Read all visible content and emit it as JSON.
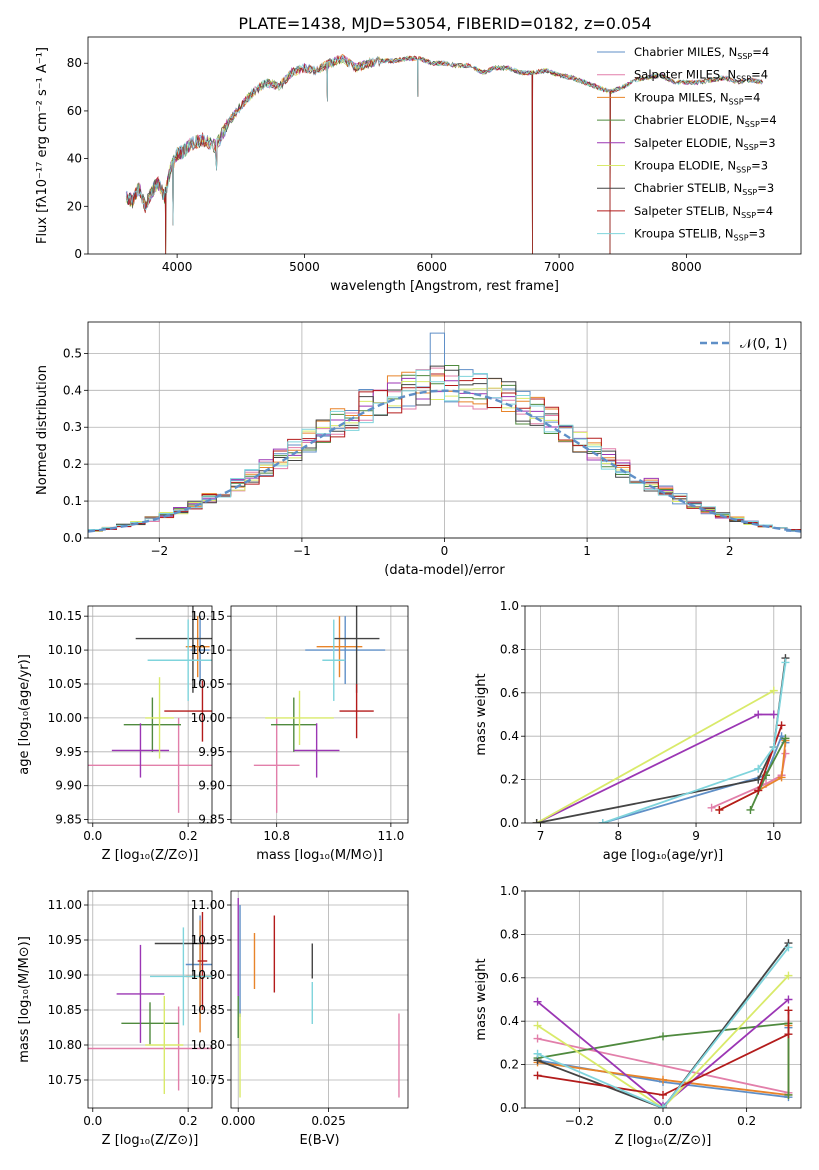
{
  "colors": [
    "#5f8fc7",
    "#e27faa",
    "#e8842a",
    "#4f8a3e",
    "#9b36b4",
    "#d9ea6a",
    "#444444",
    "#b31b1b",
    "#7fd4dc"
  ],
  "title": "PLATE=1438, MJD=53054, FIBERID=0182, z=0.054",
  "chart_data": [
    {
      "type": "line",
      "id": "spectrum",
      "xlabel": "wavelength [Angstrom, rest frame]",
      "ylabel": "Flux [fλ10⁻¹⁷ erg cm⁻² s⁻¹ A⁻¹]",
      "xlim": [
        3300,
        8900
      ],
      "ylim": [
        0,
        91
      ],
      "xticks": [
        4000,
        5000,
        6000,
        7000,
        8000
      ],
      "yticks": [
        0,
        20,
        40,
        60,
        80
      ],
      "legend_position": "top-right",
      "legend": [
        {
          "model": "Chabrier MILES",
          "n": "4"
        },
        {
          "model": "Salpeter MILES",
          "n": "4"
        },
        {
          "model": "Kroupa MILES",
          "n": "4"
        },
        {
          "model": "Chabrier ELODIE",
          "n": "4"
        },
        {
          "model": "Salpeter ELODIE",
          "n": "3"
        },
        {
          "model": "Kroupa ELODIE",
          "n": "3"
        },
        {
          "model": "Chabrier STELIB",
          "n": "3"
        },
        {
          "model": "Salpeter STELIB",
          "n": "4"
        },
        {
          "model": "Kroupa STELIB",
          "n": "3"
        }
      ],
      "n_label": "N",
      "n_sub": "SSP",
      "x": [
        3600,
        3650,
        3700,
        3750,
        3800,
        3850,
        3900,
        3950,
        4000,
        4050,
        4100,
        4200,
        4300,
        4400,
        4500,
        4600,
        4700,
        4800,
        4900,
        5000,
        5100,
        5200,
        5300,
        5400,
        5500,
        5600,
        5700,
        5800,
        5900,
        6000,
        6100,
        6200,
        6300,
        6400,
        6500,
        6600,
        6700,
        6800,
        6900,
        7000,
        7100,
        7200,
        7300,
        7400,
        7500,
        7600,
        7700,
        7800,
        7900,
        8000,
        8100,
        8200,
        8300,
        8400,
        8500,
        8600
      ],
      "y": [
        24,
        22,
        28,
        20,
        26,
        30,
        24,
        36,
        42,
        43,
        46,
        48,
        45,
        55,
        62,
        68,
        72,
        70,
        76,
        78,
        77,
        80,
        82,
        78,
        80,
        81,
        81,
        82,
        82,
        80,
        80,
        79,
        79,
        76,
        78,
        78,
        76,
        76,
        77,
        75,
        74,
        72,
        70,
        68,
        70,
        73,
        74,
        75,
        72,
        72,
        72,
        73,
        74,
        72,
        73,
        72
      ],
      "drops": [
        {
          "x": 3910,
          "to": 0
        },
        {
          "x": 3968,
          "to": 12
        },
        {
          "x": 4310,
          "to": 35
        },
        {
          "x": 5180,
          "to": 64
        },
        {
          "x": 5890,
          "to": 66
        },
        {
          "x": 6790,
          "to": 0
        },
        {
          "x": 7400,
          "to": 0
        }
      ]
    },
    {
      "type": "step",
      "id": "residuals",
      "xlabel": "(data-model)/error",
      "ylabel": "Normed distribution",
      "xlim": [
        -2.5,
        2.5
      ],
      "ylim": [
        0,
        0.585
      ],
      "xticks": [
        -2,
        -1,
        0,
        1,
        2
      ],
      "yticks": [
        0.0,
        0.1,
        0.2,
        0.3,
        0.4,
        0.5
      ],
      "grid": true,
      "legend_position": "top-right",
      "normal_label": "𝒩(0, 1)",
      "normal_color": "#5f8fc7",
      "bin_width": 0.1
    },
    {
      "type": "errorbar",
      "id": "age-vs-Z",
      "xlabel": "Z [log₁₀(Z/Z⊙)]",
      "ylabel": "age  [log₁₀(age/yr)]",
      "xlim": [
        -0.01,
        0.25
      ],
      "ylim": [
        9.845,
        10.165
      ],
      "xticks": [
        0.0,
        0.2
      ],
      "yticks": [
        9.85,
        9.9,
        9.95,
        10.0,
        10.05,
        10.1,
        10.15
      ],
      "points": [
        {
          "x": 0.225,
          "y": 10.1,
          "ex": 0.02,
          "ey": 0.05
        },
        {
          "x": 0.18,
          "y": 9.93,
          "ex": 0.19,
          "ey": 0.07
        },
        {
          "x": 0.22,
          "y": 10.105,
          "ex": 0.025,
          "ey": 0.045
        },
        {
          "x": 0.125,
          "y": 9.99,
          "ex": 0.06,
          "ey": 0.04
        },
        {
          "x": 0.1,
          "y": 9.952,
          "ex": 0.06,
          "ey": 0.04
        },
        {
          "x": 0.14,
          "y": 10.0,
          "ex": 0.03,
          "ey": 0.06
        },
        {
          "x": 0.21,
          "y": 10.117,
          "ex": 0.12,
          "ey": 0.08
        },
        {
          "x": 0.23,
          "y": 10.01,
          "ex": 0.08,
          "ey": 0.045
        },
        {
          "x": 0.2,
          "y": 10.085,
          "ex": 0.085,
          "ey": 0.06
        }
      ]
    },
    {
      "type": "errorbar",
      "id": "age-vs-mass",
      "xlabel": "mass [log₁₀(M/M⊙)]",
      "xlim": [
        10.72,
        11.03
      ],
      "ylim": [
        9.845,
        10.165
      ],
      "xticks": [
        10.8,
        11.0
      ],
      "yticks": [
        9.85,
        9.9,
        9.95,
        10.0,
        10.05,
        10.1,
        10.15
      ],
      "points": [
        {
          "x": 10.92,
          "y": 10.1,
          "ex": 0.07,
          "ey": 0.05
        },
        {
          "x": 10.8,
          "y": 9.93,
          "ex": 0.04,
          "ey": 0.07
        },
        {
          "x": 10.91,
          "y": 10.105,
          "ex": 0.04,
          "ey": 0.045
        },
        {
          "x": 10.83,
          "y": 9.99,
          "ex": 0.04,
          "ey": 0.04
        },
        {
          "x": 10.87,
          "y": 9.952,
          "ex": 0.04,
          "ey": 0.04
        },
        {
          "x": 10.84,
          "y": 10.0,
          "ex": 0.06,
          "ey": 0.04
        },
        {
          "x": 10.94,
          "y": 10.117,
          "ex": 0.04,
          "ey": 0.08
        },
        {
          "x": 10.94,
          "y": 10.01,
          "ex": 0.03,
          "ey": 0.04
        },
        {
          "x": 10.9,
          "y": 10.085,
          "ex": 0.02,
          "ey": 0.06
        }
      ]
    },
    {
      "type": "line",
      "id": "massweight-vs-age",
      "xlabel": "age  [log₁₀(age/yr)]",
      "ylabel": "mass weight",
      "xlim": [
        6.8,
        10.35
      ],
      "ylim": [
        0,
        1.0
      ],
      "xticks": [
        7,
        8,
        9,
        10
      ],
      "yticks": [
        0.0,
        0.2,
        0.4,
        0.6,
        0.8,
        1.0
      ],
      "grid": true,
      "series": [
        {
          "x": [
            7.8,
            9.9,
            10.1,
            10.15
          ],
          "y": [
            0.0,
            0.22,
            0.4,
            0.37
          ]
        },
        {
          "x": [
            9.2,
            9.9,
            10.1,
            10.15
          ],
          "y": [
            0.07,
            0.18,
            0.22,
            0.32
          ]
        },
        {
          "x": [
            9.3,
            9.8,
            10.1,
            10.15
          ],
          "y": [
            0.06,
            0.15,
            0.21,
            0.38
          ]
        },
        {
          "x": [
            9.7,
            9.9,
            10.15
          ],
          "y": [
            0.06,
            0.22,
            0.39
          ]
        },
        {
          "x": [
            6.95,
            9.8,
            10.0
          ],
          "y": [
            0.0,
            0.5,
            0.5
          ]
        },
        {
          "x": [
            6.95,
            10.0
          ],
          "y": [
            0.0,
            0.61
          ]
        },
        {
          "x": [
            6.95,
            9.8,
            10.0,
            10.15
          ],
          "y": [
            0.0,
            0.2,
            0.35,
            0.76
          ]
        },
        {
          "x": [
            9.3,
            9.8,
            10.0,
            10.1
          ],
          "y": [
            0.06,
            0.15,
            0.35,
            0.45
          ]
        },
        {
          "x": [
            7.8,
            9.8,
            10.0,
            10.15
          ],
          "y": [
            0.0,
            0.25,
            0.35,
            0.74
          ]
        }
      ]
    },
    {
      "type": "errorbar",
      "id": "mass-vs-Z",
      "xlabel": "Z [log₁₀(Z/Z⊙)]",
      "ylabel": "mass [log₁₀(M/M⊙)]",
      "xlim": [
        -0.01,
        0.25
      ],
      "ylim": [
        10.71,
        11.02
      ],
      "xticks": [
        0.0,
        0.2
      ],
      "yticks": [
        10.75,
        10.8,
        10.85,
        10.9,
        10.95,
        11.0
      ],
      "points": [
        {
          "x": 0.225,
          "y": 10.915,
          "ex": 0.03,
          "ey": 0.07
        },
        {
          "x": 0.18,
          "y": 10.795,
          "ex": 0.19,
          "ey": 0.06
        },
        {
          "x": 0.225,
          "y": 10.898,
          "ex": 0.03,
          "ey": 0.08
        },
        {
          "x": 0.12,
          "y": 10.831,
          "ex": 0.06,
          "ey": 0.03
        },
        {
          "x": 0.1,
          "y": 10.873,
          "ex": 0.05,
          "ey": 0.07
        },
        {
          "x": 0.15,
          "y": 10.8,
          "ex": 0.04,
          "ey": 0.07
        },
        {
          "x": 0.21,
          "y": 10.945,
          "ex": 0.08,
          "ey": 0.05
        },
        {
          "x": 0.23,
          "y": 10.92,
          "ex": 0.01,
          "ey": 0.07
        },
        {
          "x": 0.19,
          "y": 10.898,
          "ex": 0.07,
          "ey": 0.07
        }
      ]
    },
    {
      "type": "errorbar",
      "id": "mass-vs-ebv",
      "xlabel": "E(B-V)",
      "xlim": [
        -0.002,
        0.047
      ],
      "ylim": [
        10.71,
        11.02
      ],
      "xticks": [
        0.0,
        0.025
      ],
      "yticks": [
        10.75,
        10.8,
        10.85,
        10.9,
        10.95,
        11.0
      ],
      "points": [
        {
          "x": 0.0005,
          "y": 10.92,
          "ex": 0,
          "ey": 0.08
        },
        {
          "x": 0.0445,
          "y": 10.785,
          "ex": 0,
          "ey": 0.06
        },
        {
          "x": 0.0045,
          "y": 10.92,
          "ex": 0,
          "ey": 0.04
        },
        {
          "x": 0.0,
          "y": 10.84,
          "ex": 0,
          "ey": 0.03
        },
        {
          "x": 0.0,
          "y": 10.94,
          "ex": 0,
          "ey": 0.07
        },
        {
          "x": 0.0005,
          "y": 10.785,
          "ex": 0,
          "ey": 0.06
        },
        {
          "x": 0.0205,
          "y": 10.92,
          "ex": 0,
          "ey": 0.025
        },
        {
          "x": 0.01,
          "y": 10.93,
          "ex": 0,
          "ey": 0.055
        },
        {
          "x": 0.0205,
          "y": 10.86,
          "ex": 0,
          "ey": 0.03
        }
      ]
    },
    {
      "type": "line",
      "id": "massweight-vs-Z",
      "xlabel": "Z [log₁₀(Z/Z⊙)]",
      "ylabel": "mass weight",
      "xlim": [
        -0.33,
        0.33
      ],
      "ylim": [
        0,
        1.0
      ],
      "xticks": [
        -0.2,
        0.0,
        0.2
      ],
      "yticks": [
        0.0,
        0.2,
        0.4,
        0.6,
        0.8,
        1.0
      ],
      "grid": true,
      "series": [
        {
          "x": [
            -0.3,
            0.0,
            0.3,
            0.3
          ],
          "y": [
            0.22,
            0.12,
            0.05,
            0.37
          ]
        },
        {
          "x": [
            -0.3,
            0.3
          ],
          "y": [
            0.32,
            0.07
          ]
        },
        {
          "x": [
            -0.3,
            0.0,
            0.3,
            0.3
          ],
          "y": [
            0.21,
            0.13,
            0.06,
            0.38
          ]
        },
        {
          "x": [
            -0.3,
            0.0,
            0.3,
            0.3
          ],
          "y": [
            0.23,
            0.33,
            0.39,
            0.06
          ]
        },
        {
          "x": [
            -0.3,
            0.0,
            0.3
          ],
          "y": [
            0.49,
            0.01,
            0.5
          ]
        },
        {
          "x": [
            -0.3,
            0.0,
            0.3
          ],
          "y": [
            0.38,
            0.0,
            0.61
          ]
        },
        {
          "x": [
            -0.3,
            0.0,
            0.3
          ],
          "y": [
            0.22,
            0.0,
            0.76
          ]
        },
        {
          "x": [
            -0.3,
            0.0,
            0.3,
            0.3
          ],
          "y": [
            0.15,
            0.06,
            0.34,
            0.45
          ]
        },
        {
          "x": [
            -0.3,
            0.0,
            0.3
          ],
          "y": [
            0.25,
            0.0,
            0.74
          ]
        }
      ]
    }
  ]
}
